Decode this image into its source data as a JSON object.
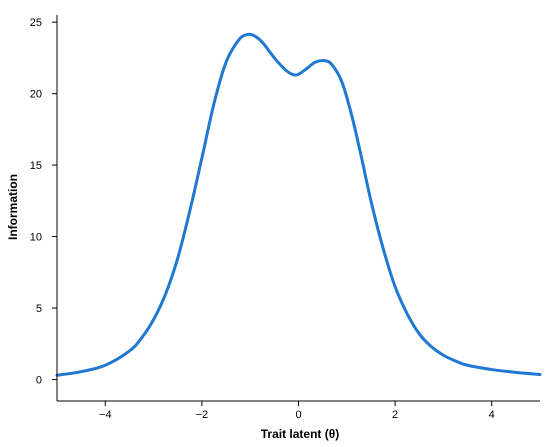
{
  "chart_data": {
    "type": "line",
    "title": "",
    "xlabel": "Trait latent (θ)",
    "ylabel": "Information",
    "xlim": [
      -5,
      5
    ],
    "ylim": [
      -1.5,
      25.5
    ],
    "xticks": [
      -4,
      -2,
      0,
      2,
      4
    ],
    "xtick_labels": [
      "−4",
      "−2",
      "0",
      "2",
      "4"
    ],
    "yticks": [
      0,
      5,
      10,
      15,
      20,
      25
    ],
    "ytick_labels": [
      "0",
      "5",
      "10",
      "15",
      "20",
      "25"
    ],
    "grid": false,
    "legend": "none",
    "line_color": "#1f78d1",
    "series": [
      {
        "x": [
          -5.0,
          -4.5,
          -4.0,
          -3.5,
          -3.25,
          -3.0,
          -2.75,
          -2.5,
          -2.25,
          -2.0,
          -1.75,
          -1.5,
          -1.25,
          -1.1,
          -0.95,
          -0.75,
          -0.5,
          -0.25,
          -0.05,
          0.15,
          0.35,
          0.55,
          0.7,
          0.9,
          1.1,
          1.3,
          1.5,
          1.75,
          2.0,
          2.25,
          2.5,
          2.75,
          3.0,
          3.25,
          3.5,
          4.0,
          4.5,
          5.0
        ],
        "y": [
          0.3,
          0.55,
          1.0,
          2.0,
          2.9,
          4.2,
          6.0,
          8.5,
          11.8,
          15.5,
          19.3,
          22.2,
          23.7,
          24.1,
          24.1,
          23.6,
          22.5,
          21.6,
          21.3,
          21.7,
          22.2,
          22.3,
          22.0,
          20.8,
          18.5,
          15.6,
          12.5,
          9.2,
          6.5,
          4.6,
          3.2,
          2.3,
          1.7,
          1.3,
          1.0,
          0.7,
          0.5,
          0.35
        ]
      }
    ]
  }
}
